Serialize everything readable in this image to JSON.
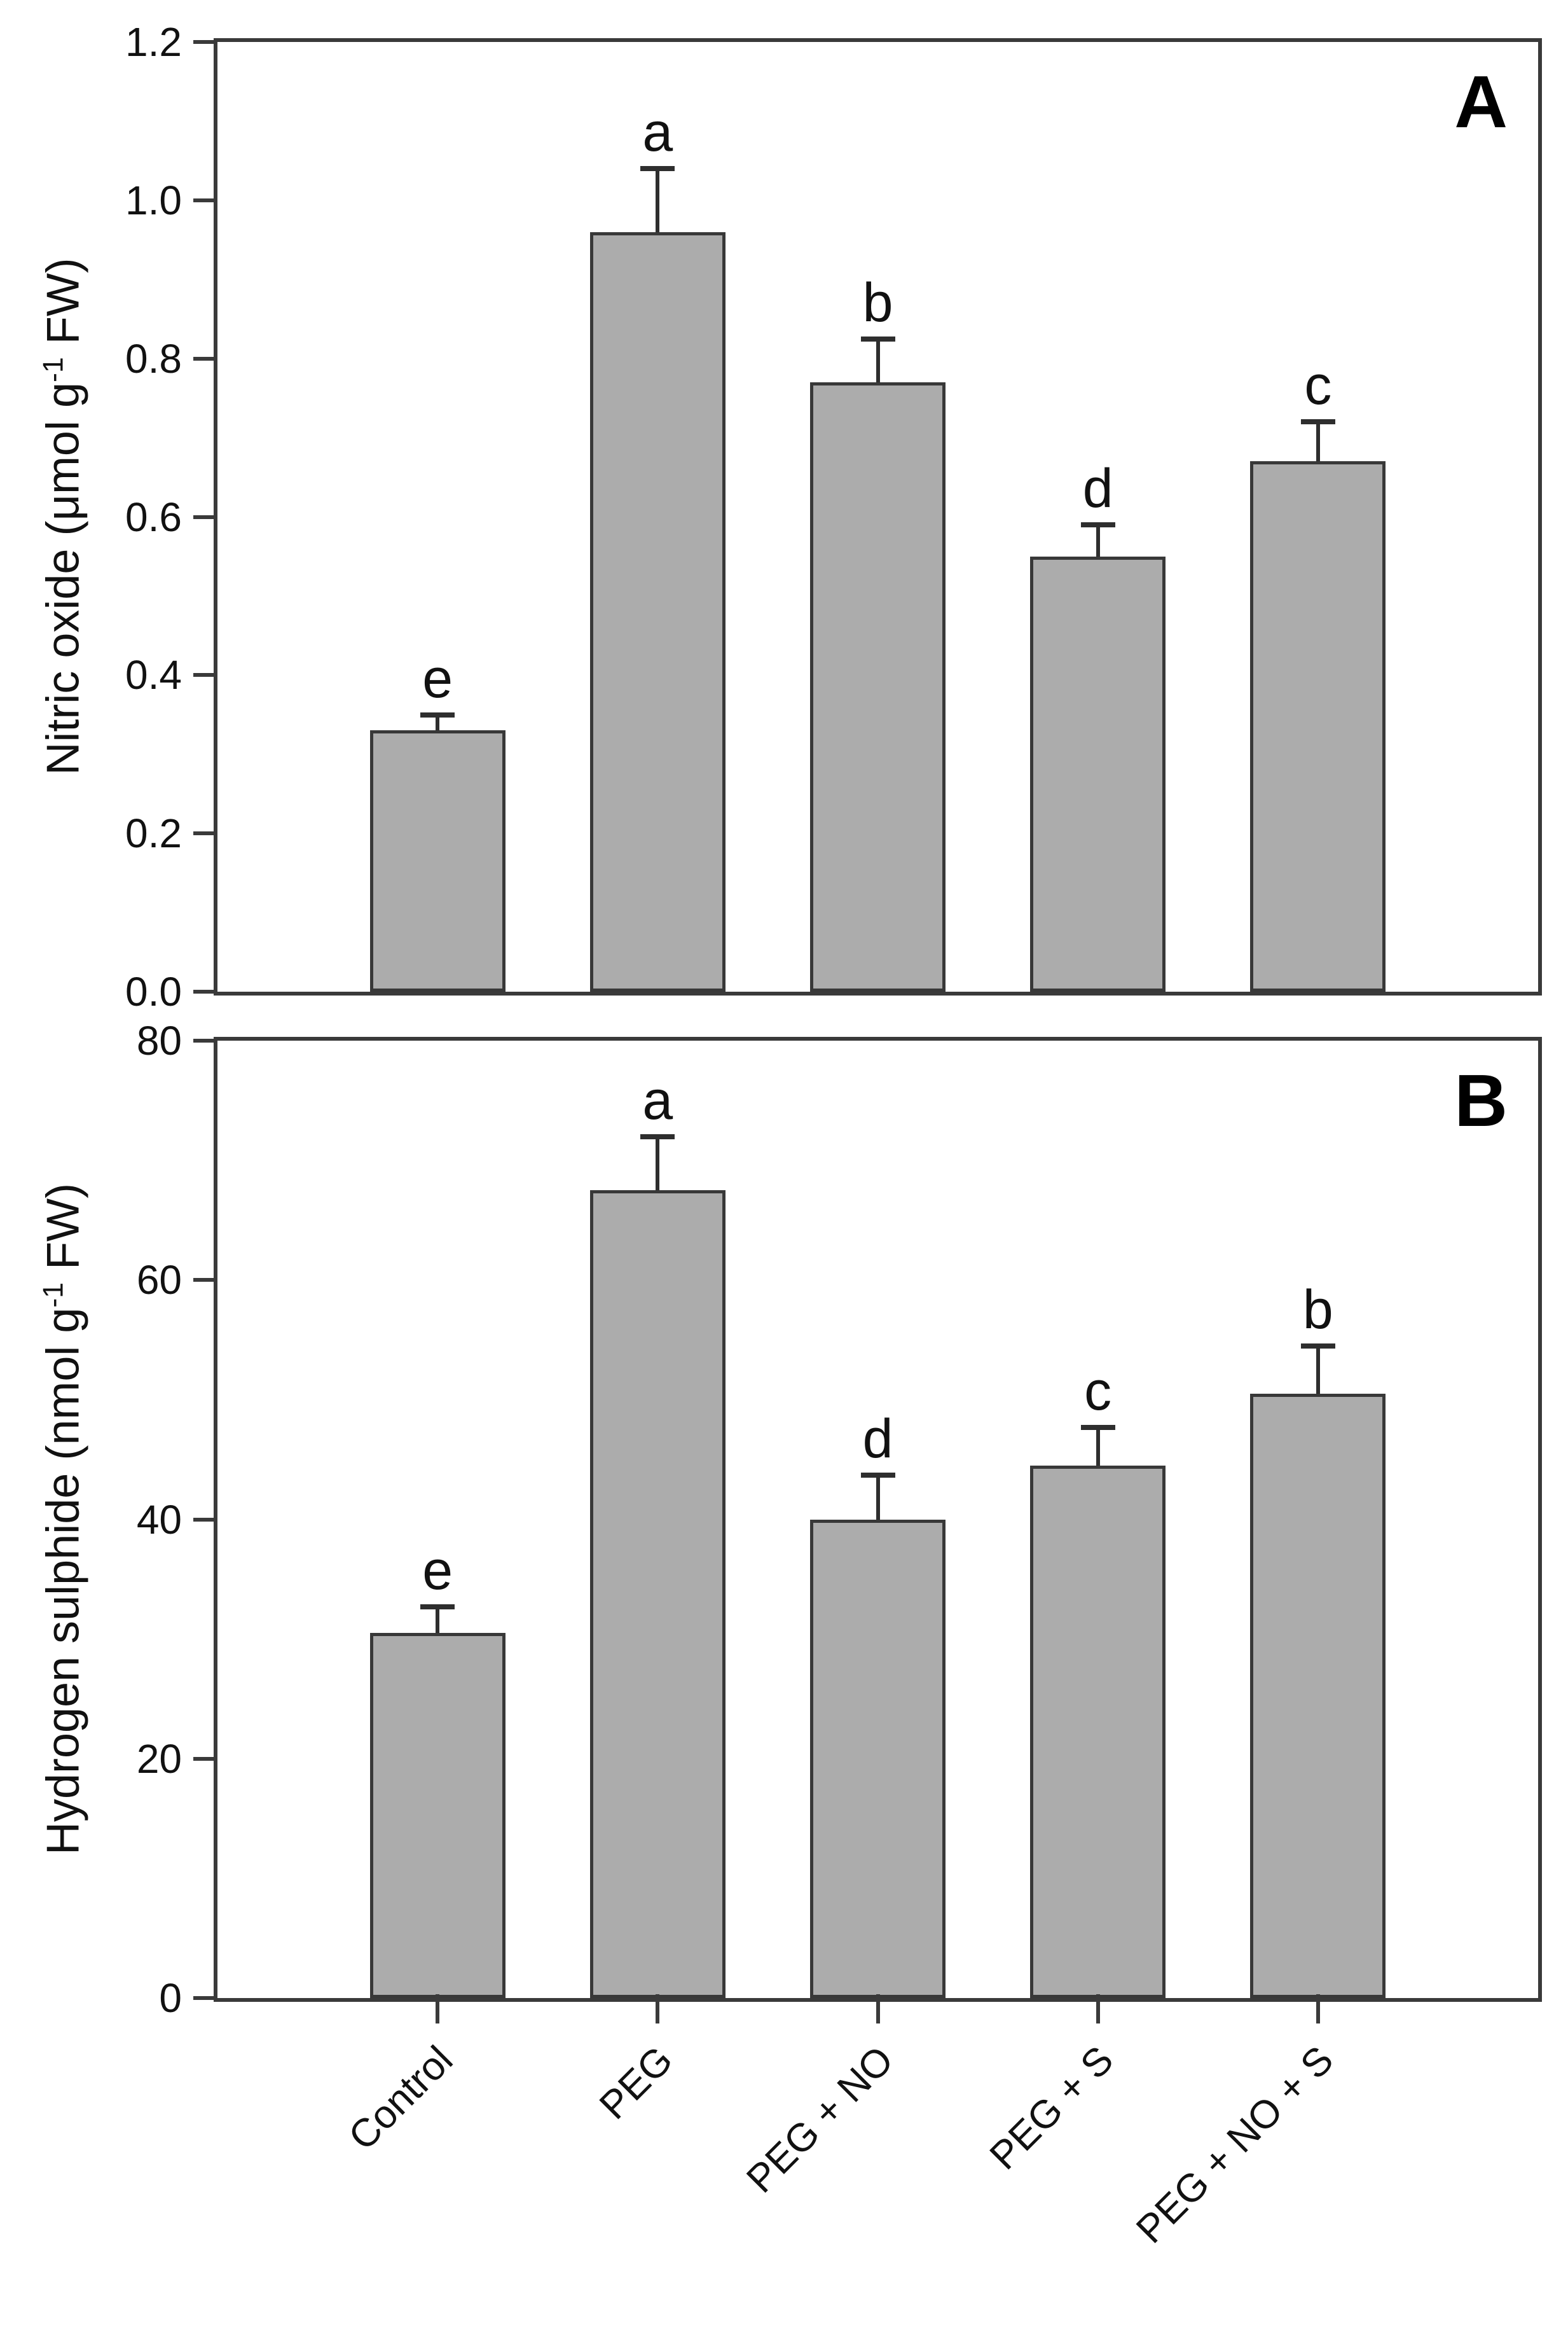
{
  "figure": {
    "background": "#ffffff",
    "bar_fill_color": "#acacac",
    "bar_edge_color": "#383838",
    "frame_color": "#3a3a3a",
    "error_bar_color": "#2e2e2e",
    "text_color": "#000000"
  },
  "chart_data": [
    {
      "type": "bar",
      "panel_letter": "A",
      "ylabel": "Nitric oxide (μmol g⁻¹ FW)",
      "ylabel_parts": {
        "pre": "Nitric oxide (μmol g",
        "sup": "-1",
        "post": " FW)"
      },
      "categories": [
        "Control",
        "PEG",
        "PEG + NO",
        "PEG + S",
        "PEG + NO + S"
      ],
      "values": [
        0.33,
        0.96,
        0.77,
        0.55,
        0.67
      ],
      "errors": [
        0.02,
        0.08,
        0.055,
        0.04,
        0.05
      ],
      "sig_letters": [
        "e",
        "a",
        "b",
        "d",
        "c"
      ],
      "ylim": [
        0,
        1.2
      ],
      "yticks": [
        0,
        0.2,
        0.4,
        0.6,
        0.8,
        1.0,
        1.2
      ],
      "ytick_labels": [
        "0.0",
        "0.2",
        "0.4",
        "0.6",
        "0.8",
        "1.0",
        "1.2"
      ],
      "grid": "off",
      "legend": "none",
      "show_x_labels": false
    },
    {
      "type": "bar",
      "panel_letter": "B",
      "ylabel": "Hydrogen sulphide (nmol g⁻¹ FW)",
      "ylabel_parts": {
        "pre": "Hydrogen sulphide (nmol g",
        "sup": "-1",
        "post": " FW)"
      },
      "categories": [
        "Control",
        "PEG",
        "PEG + NO",
        "PEG + S",
        "PEG + NO + S"
      ],
      "values": [
        30.5,
        67.5,
        40,
        44.5,
        50.5
      ],
      "errors": [
        2.2,
        4.5,
        3.7,
        3.2,
        4
      ],
      "sig_letters": [
        "e",
        "a",
        "d",
        "c",
        "b"
      ],
      "ylim": [
        0,
        80
      ],
      "yticks": [
        0,
        20,
        40,
        60,
        80
      ],
      "ytick_labels": [
        "0",
        "20",
        "40",
        "60",
        "80"
      ],
      "grid": "off",
      "legend": "none",
      "show_x_labels": true
    }
  ]
}
